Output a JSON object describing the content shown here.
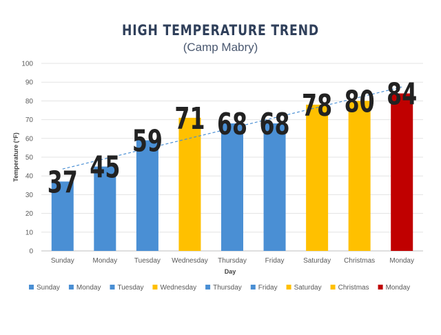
{
  "chart_data": {
    "type": "bar",
    "title": "HIGH TEMPERATURE TREND",
    "subtitle": "(Camp Mabry)",
    "xlabel": "Day",
    "ylabel": "Temperature (°F)",
    "ylim": [
      0,
      100
    ],
    "yticks": [
      0,
      10,
      20,
      30,
      40,
      50,
      60,
      70,
      80,
      90,
      100
    ],
    "grid": true,
    "legend_position": "bottom",
    "categories": [
      "Sunday",
      "Monday",
      "Tuesday",
      "Wednesday",
      "Thursday",
      "Friday",
      "Saturday",
      "Christmas",
      "Monday"
    ],
    "values": [
      37,
      45,
      59,
      71,
      68,
      68,
      78,
      80,
      84
    ],
    "data_labels": [
      "37",
      "45",
      "59",
      "71",
      "68",
      "68",
      "78",
      "80",
      "84"
    ],
    "bar_colors": [
      "#4a8fd4",
      "#4a8fd4",
      "#4a8fd4",
      "#ffc000",
      "#4a8fd4",
      "#4a8fd4",
      "#ffc000",
      "#ffc000",
      "#c00000"
    ],
    "trendline": {
      "type": "linear",
      "style": "dashed",
      "color": "#4a8fd4"
    }
  }
}
